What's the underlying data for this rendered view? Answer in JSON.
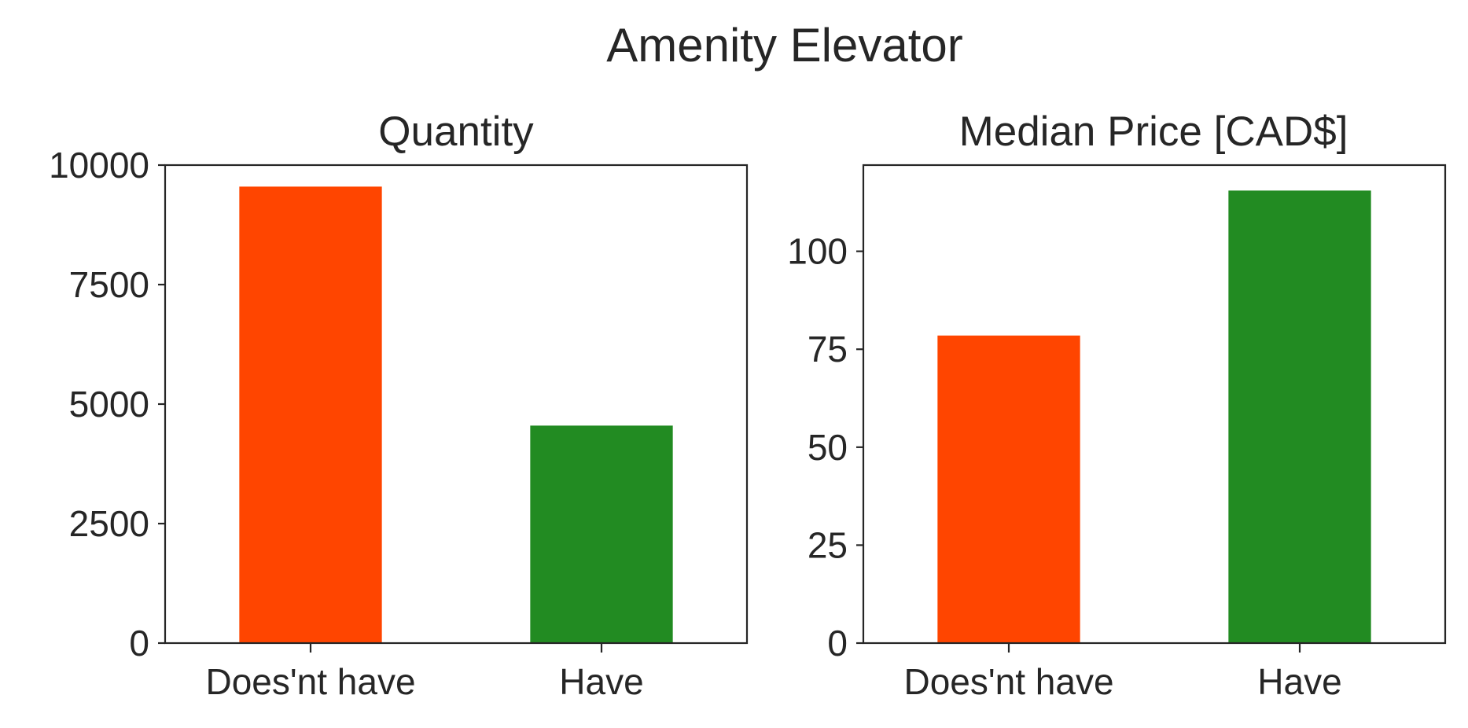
{
  "figure": {
    "title": "Amenity Elevator"
  },
  "chart_data": [
    {
      "type": "bar",
      "title": "Quantity",
      "xlabel": "",
      "ylabel": "",
      "categories": [
        "Does'nt have",
        "Have"
      ],
      "values": [
        9550,
        4550
      ],
      "colors": [
        "#ff4500",
        "#228b22"
      ],
      "ylim": [
        0,
        10000
      ],
      "yticks": [
        0,
        2500,
        5000,
        7500,
        10000
      ],
      "ytick_labels": [
        "0",
        "2500",
        "5000",
        "7500",
        "10000"
      ],
      "grid": false,
      "legend": "none"
    },
    {
      "type": "bar",
      "title": "Median Price [CAD$]",
      "xlabel": "",
      "ylabel": "",
      "categories": [
        "Does'nt have",
        "Have"
      ],
      "values": [
        78.5,
        115.5
      ],
      "colors": [
        "#ff4500",
        "#228b22"
      ],
      "ylim": [
        0,
        122
      ],
      "yticks": [
        0,
        25,
        50,
        75,
        100
      ],
      "ytick_labels": [
        "0",
        "25",
        "50",
        "75",
        "100"
      ],
      "grid": false,
      "legend": "none"
    }
  ]
}
